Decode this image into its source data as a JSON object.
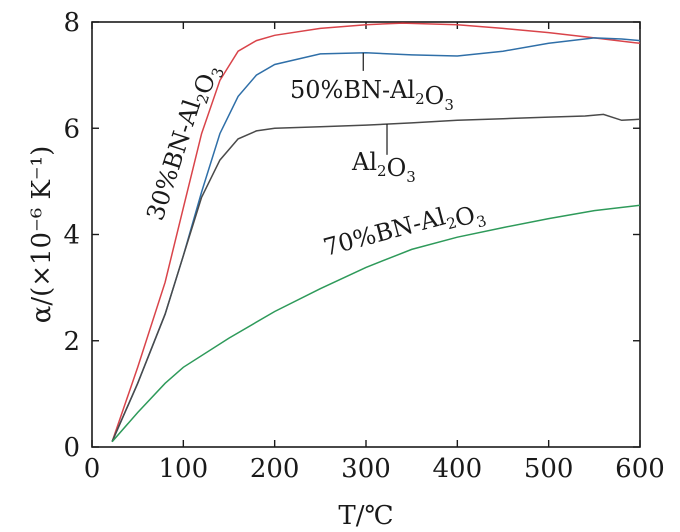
{
  "chart_data": {
    "type": "line",
    "xlabel": "T/℃",
    "ylabel": "α/(×10⁻⁶ K⁻¹)",
    "xlim": [
      0,
      600
    ],
    "ylim": [
      0,
      8
    ],
    "xticks": [
      0,
      100,
      200,
      300,
      400,
      500,
      600
    ],
    "yticks": [
      0,
      2,
      4,
      6,
      8
    ],
    "grid": false,
    "legend": "none",
    "series": [
      {
        "name": "30%BN-Al2O3",
        "color": "#d9444a",
        "x": [
          22,
          50,
          80,
          100,
          120,
          140,
          160,
          180,
          200,
          250,
          300,
          340,
          400,
          450,
          500,
          550,
          600
        ],
        "y": [
          0.1,
          1.5,
          3.1,
          4.5,
          5.9,
          6.9,
          7.45,
          7.65,
          7.75,
          7.88,
          7.95,
          7.98,
          7.95,
          7.88,
          7.8,
          7.7,
          7.6
        ]
      },
      {
        "name": "50%BN-Al2O3",
        "color": "#2f6fa8",
        "x": [
          22,
          50,
          80,
          100,
          120,
          140,
          160,
          180,
          200,
          250,
          300,
          350,
          400,
          450,
          500,
          550,
          580,
          600
        ],
        "y": [
          0.1,
          1.2,
          2.5,
          3.6,
          4.8,
          5.9,
          6.6,
          7.0,
          7.2,
          7.4,
          7.42,
          7.38,
          7.36,
          7.45,
          7.6,
          7.7,
          7.68,
          7.65
        ]
      },
      {
        "name": "Al2O3",
        "color": "#4a4a4a",
        "x": [
          22,
          50,
          80,
          100,
          120,
          140,
          160,
          180,
          200,
          250,
          300,
          350,
          400,
          450,
          500,
          540,
          560,
          580,
          600
        ],
        "y": [
          0.1,
          1.2,
          2.5,
          3.6,
          4.7,
          5.4,
          5.8,
          5.95,
          6.0,
          6.03,
          6.06,
          6.1,
          6.15,
          6.18,
          6.21,
          6.23,
          6.26,
          6.15,
          6.17
        ]
      },
      {
        "name": "70%BN-Al2O3",
        "color": "#2e9a5a",
        "x": [
          22,
          50,
          80,
          100,
          150,
          200,
          250,
          300,
          350,
          400,
          450,
          500,
          550,
          600
        ],
        "y": [
          0.1,
          0.65,
          1.2,
          1.5,
          2.05,
          2.55,
          2.98,
          3.38,
          3.72,
          3.95,
          4.13,
          4.3,
          4.45,
          4.55
        ]
      }
    ],
    "annotations": [
      {
        "text": "30%BN-Al",
        "sub1": "2",
        "mid": "O",
        "sub2": "3"
      },
      {
        "text": "50%BN-Al",
        "sub1": "2",
        "mid": "O",
        "sub2": "3"
      },
      {
        "text": "Al",
        "sub1": "2",
        "mid": "O",
        "sub2": "3"
      },
      {
        "text": "70%BN-Al",
        "sub1": "2",
        "mid": "O",
        "sub2": "3"
      }
    ]
  }
}
